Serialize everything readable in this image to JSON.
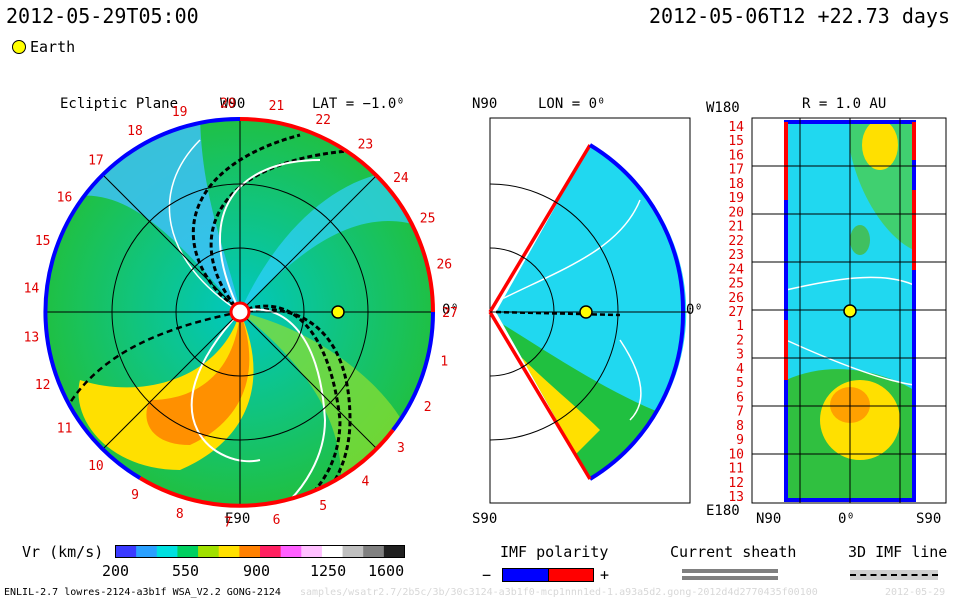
{
  "header": {
    "run_time": "2012-05-29T05:00",
    "frame_time": "2012-05-06T12 +22.73 days"
  },
  "legend": {
    "earth_label": "Earth",
    "earth_color": "#ffff00"
  },
  "panels": {
    "ecliptic": {
      "title": "Ecliptic Plane",
      "lat": "LAT = −1.0⁰",
      "top_label": "W90",
      "bottom_label": "E90",
      "right_label": "0⁰",
      "carrington_labels": [
        "1",
        "2",
        "3",
        "4",
        "5",
        "6",
        "7",
        "8",
        "9",
        "10",
        "11",
        "12",
        "13",
        "14",
        "15",
        "16",
        "17",
        "18",
        "19",
        "20",
        "21",
        "22",
        "23",
        "24",
        "25",
        "26",
        "27"
      ]
    },
    "meridional": {
      "top_label": "N90",
      "lon": "LON = 0⁰",
      "bottom_label": "S90",
      "right_label": "0⁰"
    },
    "radial": {
      "title": "R = 1.0 AU",
      "top_left_label": "W180",
      "bottom_left_label": "E180",
      "x_ticks": [
        "N90",
        "0⁰",
        "S90"
      ],
      "y_ticks": [
        "14",
        "15",
        "16",
        "17",
        "18",
        "19",
        "20",
        "21",
        "22",
        "23",
        "24",
        "25",
        "26",
        "27",
        "1",
        "2",
        "3",
        "4",
        "5",
        "6",
        "7",
        "8",
        "9",
        "10",
        "11",
        "12",
        "13"
      ]
    }
  },
  "colorbar": {
    "label": "Vr (km/s)",
    "ticks": [
      "200",
      "550",
      "900",
      "1250",
      "1600"
    ],
    "min": 200,
    "max": 1600,
    "colors": [
      "#3a3aff",
      "#2aa0ff",
      "#00e0e0",
      "#00d060",
      "#a0e000",
      "#ffe000",
      "#ff8000",
      "#ff2060",
      "#ff60ff",
      "#ffc0ff",
      "#ffffff",
      "#c0c0c0",
      "#808080",
      "#202020"
    ]
  },
  "imf_polarity": {
    "label": "IMF polarity",
    "minus": "−",
    "plus": "+",
    "neg_color": "#0000ff",
    "pos_color": "#ff0000"
  },
  "current_sheath": {
    "label": "Current sheath"
  },
  "imf_line": {
    "label": "3D IMF line"
  },
  "footer": {
    "model_info": "ENLIL-2.7 lowres-2124-a3b1f WSA_V2.2 GONG-2124",
    "path_info": "samples/wsatr2.7/2b5c/3b/30c3124-a3b1f0-mcp1nnn1ed-1.a93a5d2.gong-2012d4d2770435f00100",
    "date_stamp": "2012-05-29"
  }
}
